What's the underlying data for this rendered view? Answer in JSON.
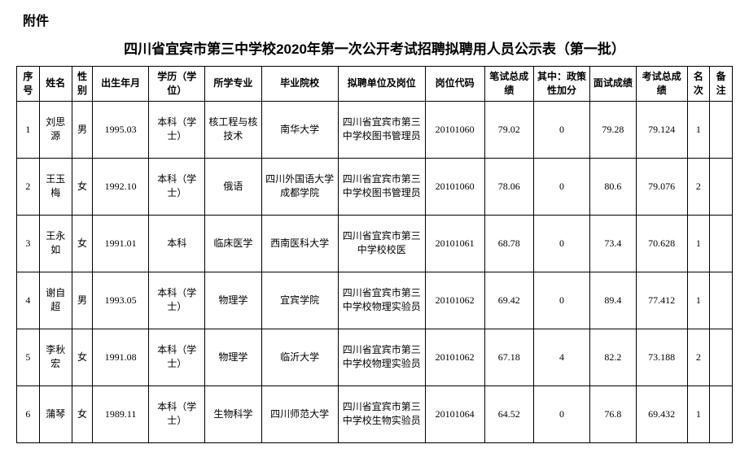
{
  "attachment_label": "附件",
  "title": "四川省宜宾市第三中学校2020年第一次公开考试招聘拟聘用人员公示表（第一批）",
  "columns": [
    "序号",
    "姓名",
    "性别",
    "出生年月",
    "学历（学位）",
    "所学专业",
    "毕业院校",
    "拟聘单位及岗位",
    "岗位代码",
    "笔试总成绩",
    "其中：政策性加分",
    "面试成绩",
    "考试总成绩",
    "名次",
    "备注"
  ],
  "rows": [
    {
      "seq": "1",
      "name": "刘思源",
      "gender": "男",
      "birth": "1995.03",
      "edu": "本科（学士）",
      "major": "核工程与核技术",
      "school": "南华大学",
      "unit": "四川省宜宾市第三中学校图书管理员",
      "code": "20101060",
      "written": "79.02",
      "bonus": "0",
      "interview": "79.28",
      "total": "79.124",
      "rank": "1",
      "remark": ""
    },
    {
      "seq": "2",
      "name": "王玉梅",
      "gender": "女",
      "birth": "1992.10",
      "edu": "本科（学士）",
      "major": "俄语",
      "school": "四川外国语大学成都学院",
      "unit": "四川省宜宾市第三中学校图书管理员",
      "code": "20101060",
      "written": "78.06",
      "bonus": "0",
      "interview": "80.6",
      "total": "79.076",
      "rank": "2",
      "remark": ""
    },
    {
      "seq": "3",
      "name": "王永如",
      "gender": "女",
      "birth": "1991.01",
      "edu": "本科",
      "major": "临床医学",
      "school": "西南医科大学",
      "unit": "四川省宜宾市第三中学校校医",
      "code": "20101061",
      "written": "68.78",
      "bonus": "0",
      "interview": "73.4",
      "total": "70.628",
      "rank": "1",
      "remark": ""
    },
    {
      "seq": "4",
      "name": "谢自超",
      "gender": "男",
      "birth": "1993.05",
      "edu": "本科（学士）",
      "major": "物理学",
      "school": "宜宾学院",
      "unit": "四川省宜宾市第三中学校物理实验员",
      "code": "20101062",
      "written": "69.42",
      "bonus": "0",
      "interview": "89.4",
      "total": "77.412",
      "rank": "1",
      "remark": ""
    },
    {
      "seq": "5",
      "name": "李秋宏",
      "gender": "女",
      "birth": "1991.08",
      "edu": "本科（学士）",
      "major": "物理学",
      "school": "临沂大学",
      "unit": "四川省宜宾市第三中学校物理实验员",
      "code": "20101062",
      "written": "67.18",
      "bonus": "4",
      "interview": "82.2",
      "total": "73.188",
      "rank": "2",
      "remark": ""
    },
    {
      "seq": "6",
      "name": "蒲琴",
      "gender": "女",
      "birth": "1989.11",
      "edu": "本科（学士）",
      "major": "生物科学",
      "school": "四川师范大学",
      "unit": "四川省宜宾市第三中学校生物实验员",
      "code": "20101064",
      "written": "64.52",
      "bonus": "0",
      "interview": "76.8",
      "total": "69.432",
      "rank": "1",
      "remark": ""
    }
  ]
}
